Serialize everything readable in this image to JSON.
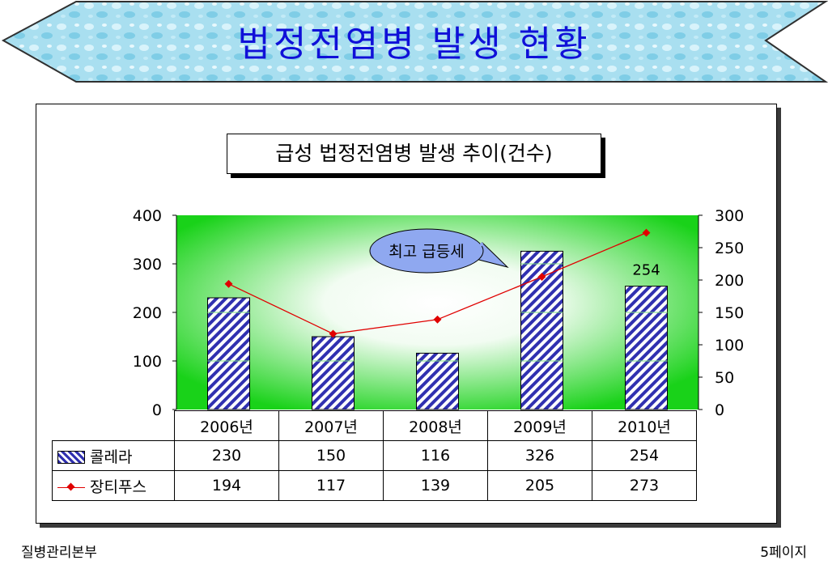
{
  "slide": {
    "title": "법정전염병 발생 현황",
    "footer_left": "질병관리본부",
    "footer_right": "5페이지"
  },
  "colors": {
    "title": "#1010d8",
    "banner": "#a9dff0",
    "plot_green": "#19d219",
    "bar_stripe": "#3030b0",
    "line": "#e00000",
    "callout": "#8fa8f0"
  },
  "chart_data": {
    "type": "bar",
    "title": "급성 법정전염병 발생 추이(건수)",
    "categories": [
      "2006년",
      "2007년",
      "2008년",
      "2009년",
      "2010년"
    ],
    "series": [
      {
        "name": "콜레라",
        "type": "bar",
        "axis": "left",
        "values": [
          230,
          150,
          116,
          326,
          254
        ]
      },
      {
        "name": "장티푸스",
        "type": "line",
        "axis": "right",
        "values": [
          194,
          117,
          139,
          205,
          273
        ]
      }
    ],
    "y_left": {
      "ticks": [
        "400",
        "300",
        "200",
        "100",
        "0"
      ],
      "range": [
        0,
        400
      ]
    },
    "y_right": {
      "ticks": [
        "300",
        "250",
        "200",
        "150",
        "100",
        "50",
        "0"
      ],
      "range": [
        0,
        300
      ]
    },
    "data_label": "254",
    "annotation": "최고 급등세",
    "legend": "table-left",
    "grid": false
  }
}
